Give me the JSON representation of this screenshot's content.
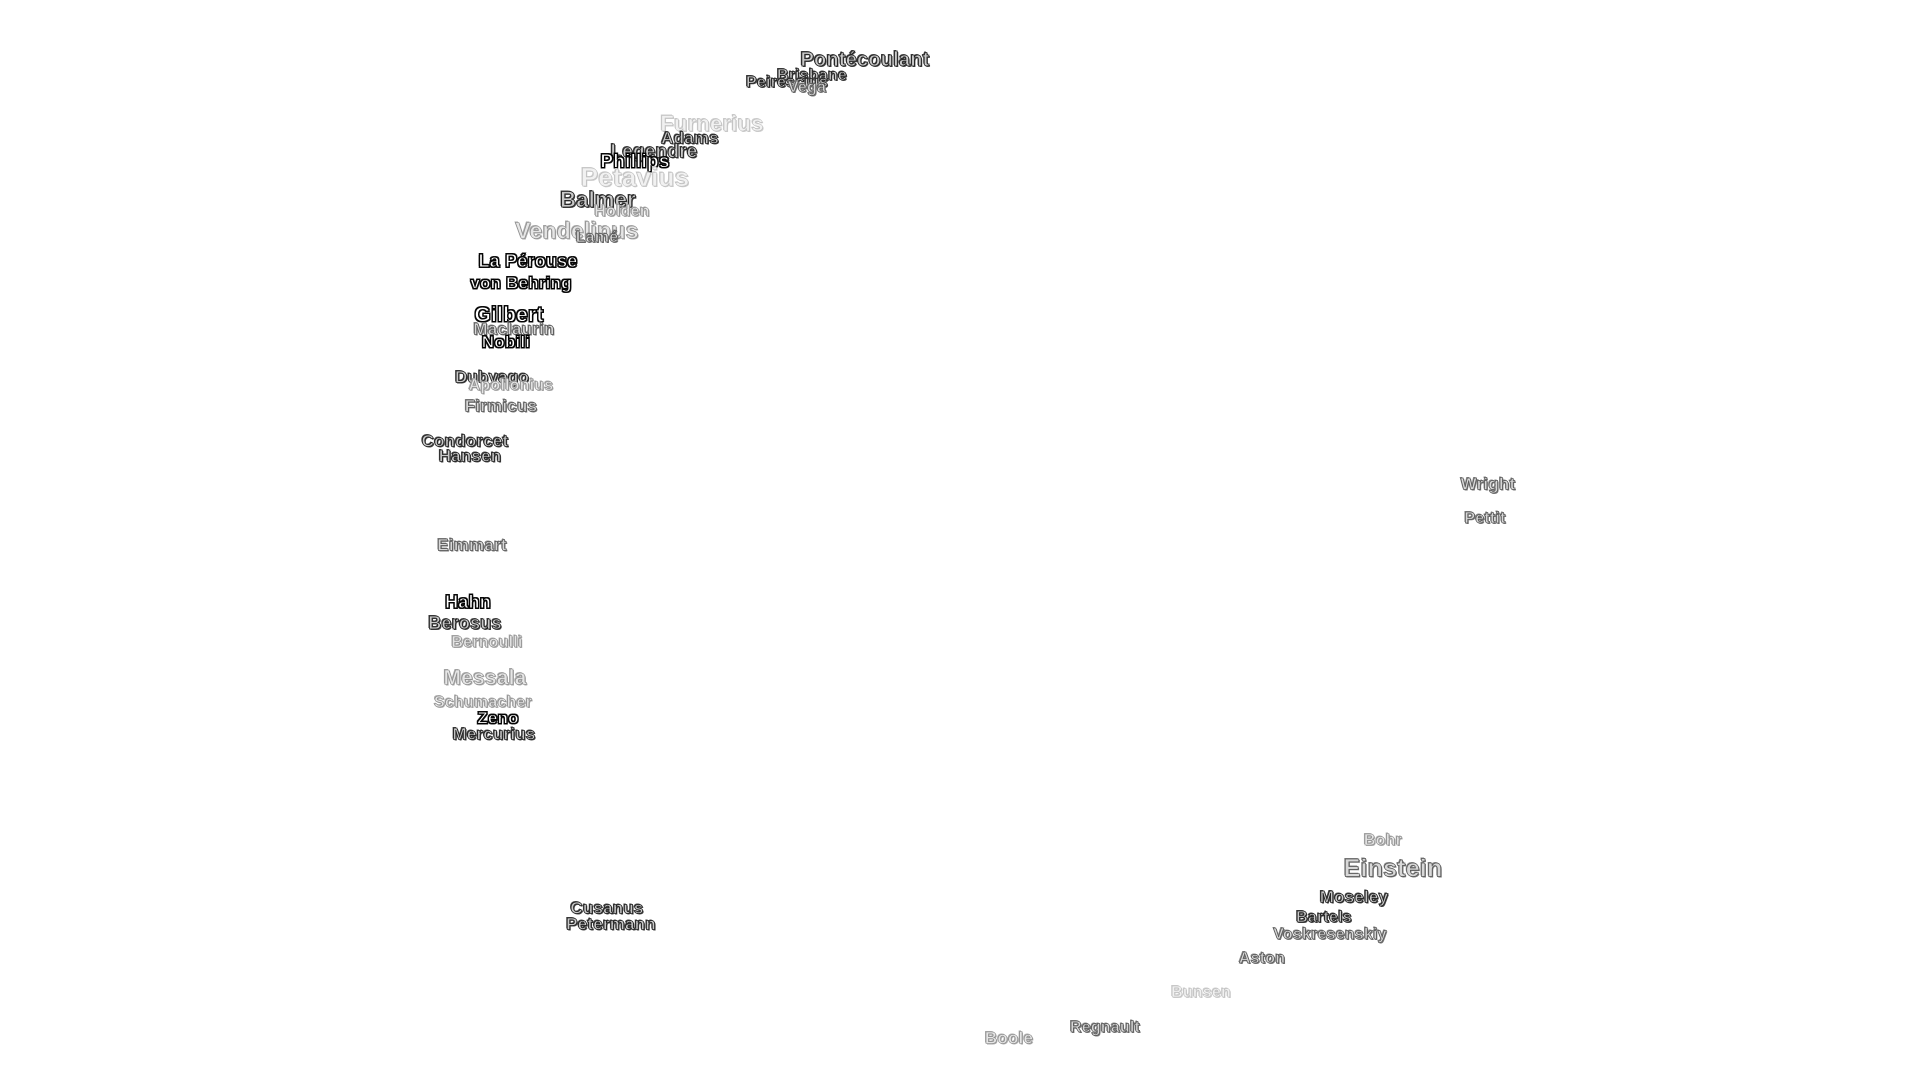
{
  "map": {
    "labels": [
      {
        "name": "Pontécoulant",
        "level": 1
      },
      {
        "name": "Brisbane",
        "level": 1
      },
      {
        "name": "Peirescius",
        "level": 1
      },
      {
        "name": "Vega",
        "level": 2
      },
      {
        "name": "Furnerius",
        "level": 4
      },
      {
        "name": "Adams",
        "level": 1
      },
      {
        "name": "Legendre",
        "level": 1
      },
      {
        "name": "Phillips",
        "level": 0
      },
      {
        "name": "Petavius",
        "level": 4
      },
      {
        "name": "Balmer",
        "level": 1
      },
      {
        "name": "Holden",
        "level": 3
      },
      {
        "name": "Vendelinus",
        "level": 3
      },
      {
        "name": "Lamé",
        "level": 2
      },
      {
        "name": "La Pérouse",
        "level": 0
      },
      {
        "name": "von Behring",
        "level": 0
      },
      {
        "name": "Gilbert",
        "level": 0
      },
      {
        "name": "Maclaurin",
        "level": 2
      },
      {
        "name": "Nobili",
        "level": 0
      },
      {
        "name": "Dubyago",
        "level": 1
      },
      {
        "name": "Apollonius",
        "level": 3
      },
      {
        "name": "Firmicus",
        "level": 2
      },
      {
        "name": "Condorcet",
        "level": 1
      },
      {
        "name": "Hansen",
        "level": 1
      },
      {
        "name": "Eimmart",
        "level": 2
      },
      {
        "name": "Hahn",
        "level": 0
      },
      {
        "name": "Berosus",
        "level": 1
      },
      {
        "name": "Bernoulli",
        "level": 3
      },
      {
        "name": "Messala",
        "level": 3
      },
      {
        "name": "Schumacher",
        "level": 3
      },
      {
        "name": "Zeno",
        "level": 0
      },
      {
        "name": "Mercurius",
        "level": 1
      },
      {
        "name": "Cusanus",
        "level": 1
      },
      {
        "name": "Petermann",
        "level": 1
      },
      {
        "name": "Wright",
        "level": 2
      },
      {
        "name": "Pettit",
        "level": 2
      },
      {
        "name": "Bohr",
        "level": 3
      },
      {
        "name": "Einstein",
        "level": 2
      },
      {
        "name": "Moseley",
        "level": 1
      },
      {
        "name": "Bartels",
        "level": 1
      },
      {
        "name": "Voskresenskiy",
        "level": 2
      },
      {
        "name": "Aston",
        "level": 2
      },
      {
        "name": "Bunsen",
        "level": 4
      },
      {
        "name": "Boole",
        "level": 3
      },
      {
        "name": "Regnault",
        "level": 2
      }
    ]
  }
}
